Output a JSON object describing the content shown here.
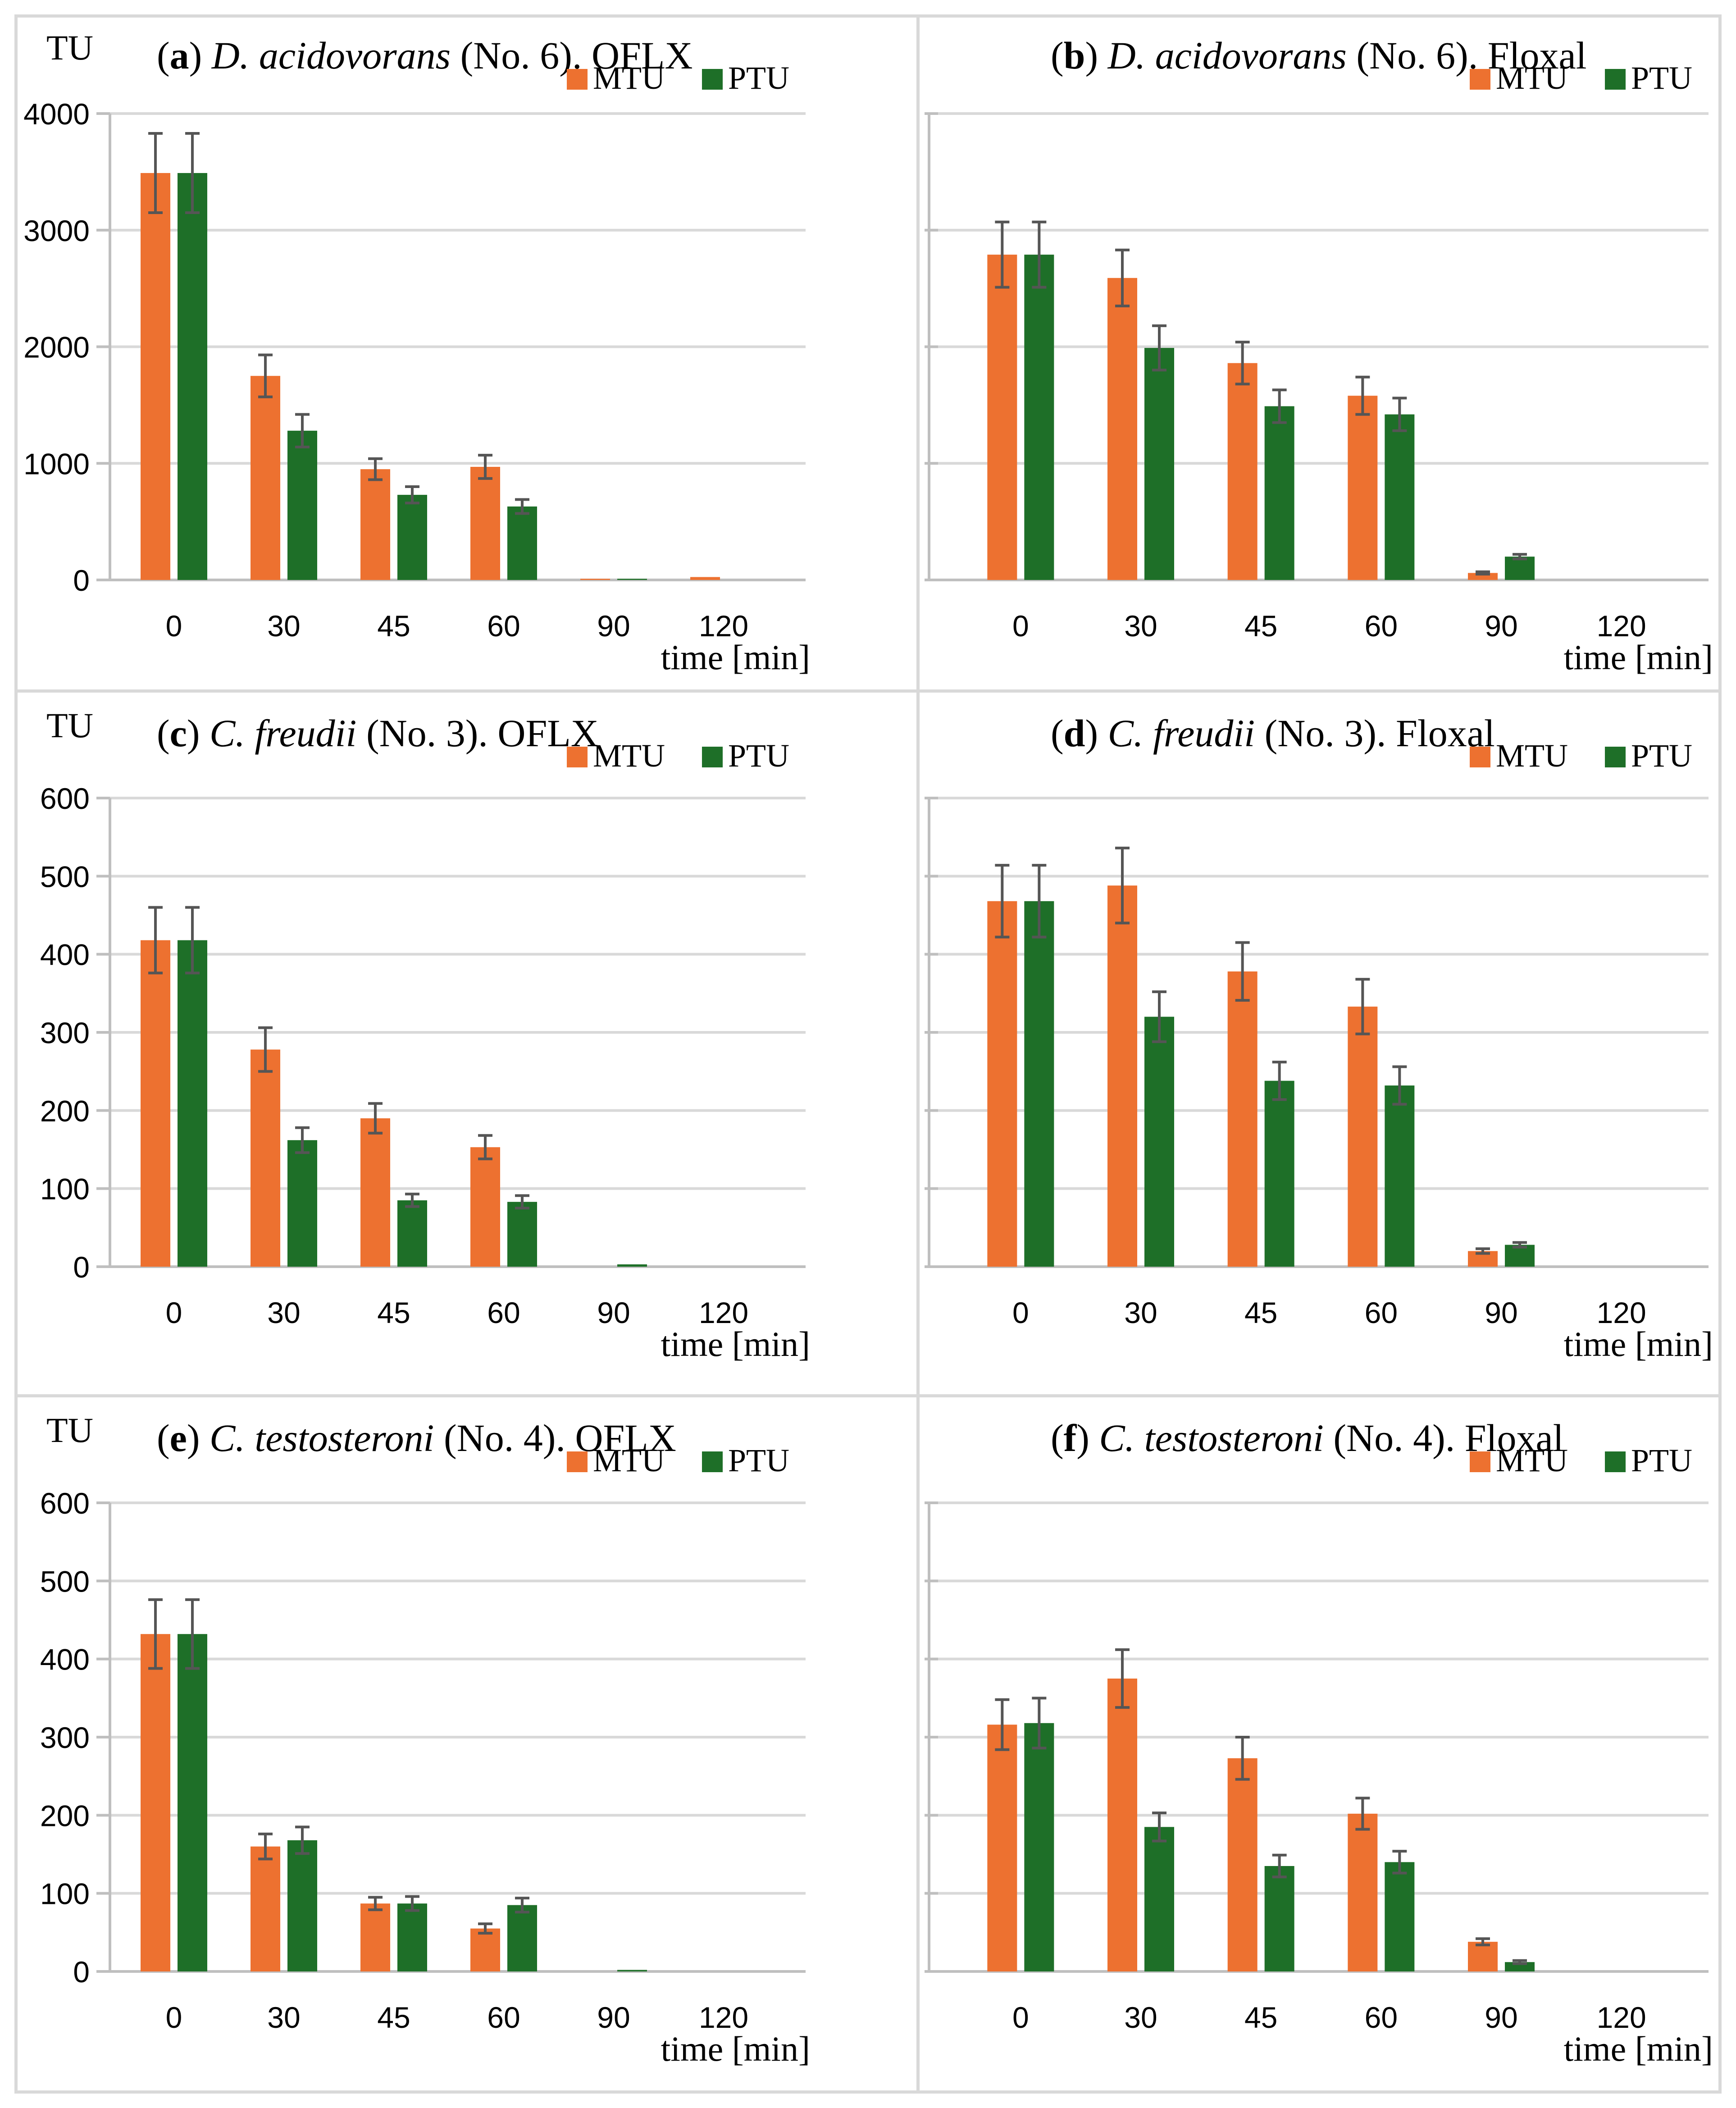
{
  "chart_data": [
    {
      "id": "a",
      "type": "bar",
      "title_letter": "a",
      "title_open": "(",
      "title_close": ")",
      "title_species": "D. acidovorans",
      "title_rest": "(No. 6). OFLX",
      "ylabel": "TU",
      "xlabel": "time [min]",
      "show_ylabel": true,
      "show_yticks": true,
      "categories": [
        "0",
        "30",
        "45",
        "60",
        "90",
        "120"
      ],
      "ylim": [
        0,
        4000
      ],
      "yticks": [
        0,
        1000,
        2000,
        3000,
        4000
      ],
      "grid": true,
      "legend_position": "top-right",
      "series": [
        {
          "name": "MTU",
          "color": "#ed7130",
          "values": [
            3490,
            1750,
            950,
            970,
            10,
            25
          ],
          "errors": [
            340,
            180,
            90,
            100,
            0,
            0
          ]
        },
        {
          "name": "PTU",
          "color": "#1e6f28",
          "values": [
            3490,
            1280,
            730,
            630,
            10,
            0
          ],
          "errors": [
            340,
            140,
            70,
            60,
            0,
            0
          ]
        }
      ]
    },
    {
      "id": "b",
      "type": "bar",
      "title_letter": "b",
      "title_open": "(",
      "title_close": ")",
      "title_species": "D. acidovorans",
      "title_rest": "(No. 6). Floxal",
      "ylabel": "",
      "xlabel": "time [min]",
      "show_ylabel": false,
      "show_yticks": false,
      "categories": [
        "0",
        "30",
        "45",
        "60",
        "90",
        "120"
      ],
      "ylim": [
        0,
        4000
      ],
      "yticks": [
        0,
        1000,
        2000,
        3000,
        4000
      ],
      "grid": true,
      "legend_position": "top-right",
      "series": [
        {
          "name": "MTU",
          "color": "#ed7130",
          "values": [
            2790,
            2590,
            1860,
            1580,
            60,
            0
          ],
          "errors": [
            280,
            240,
            180,
            160,
            10,
            0
          ]
        },
        {
          "name": "PTU",
          "color": "#1e6f28",
          "values": [
            2790,
            1990,
            1490,
            1420,
            200,
            0
          ],
          "errors": [
            280,
            190,
            140,
            140,
            20,
            0
          ]
        }
      ]
    },
    {
      "id": "c",
      "type": "bar",
      "title_letter": "c",
      "title_open": "(",
      "title_close": ")",
      "title_species": "C. freudii",
      "title_rest": "(No. 3). OFLX",
      "ylabel": "TU",
      "xlabel": "time [min]",
      "show_ylabel": true,
      "show_yticks": true,
      "categories": [
        "0",
        "30",
        "45",
        "60",
        "90",
        "120"
      ],
      "ylim": [
        0,
        600
      ],
      "yticks": [
        0,
        100,
        200,
        300,
        400,
        500,
        600
      ],
      "grid": true,
      "legend_position": "top-right",
      "series": [
        {
          "name": "MTU",
          "color": "#ed7130",
          "values": [
            418,
            278,
            190,
            153,
            0,
            0
          ],
          "errors": [
            42,
            28,
            19,
            15,
            0,
            0
          ]
        },
        {
          "name": "PTU",
          "color": "#1e6f28",
          "values": [
            418,
            162,
            85,
            83,
            3,
            0
          ],
          "errors": [
            42,
            16,
            8,
            8,
            0,
            0
          ]
        }
      ]
    },
    {
      "id": "d",
      "type": "bar",
      "title_letter": "d",
      "title_open": "(",
      "title_close": ")",
      "title_species": "C. freudii",
      "title_rest": "(No. 3). Floxal",
      "ylabel": "",
      "xlabel": "time [min]",
      "show_ylabel": false,
      "show_yticks": false,
      "categories": [
        "0",
        "30",
        "45",
        "60",
        "90",
        "120"
      ],
      "ylim": [
        0,
        600
      ],
      "yticks": [
        0,
        100,
        200,
        300,
        400,
        500,
        600
      ],
      "grid": true,
      "legend_position": "top-right",
      "series": [
        {
          "name": "MTU",
          "color": "#ed7130",
          "values": [
            468,
            488,
            378,
            333,
            20,
            0
          ],
          "errors": [
            46,
            48,
            37,
            35,
            3,
            0
          ]
        },
        {
          "name": "PTU",
          "color": "#1e6f28",
          "values": [
            468,
            320,
            238,
            232,
            28,
            0
          ],
          "errors": [
            46,
            32,
            24,
            24,
            3,
            0
          ]
        }
      ]
    },
    {
      "id": "e",
      "type": "bar",
      "title_letter": "e",
      "title_open": "(",
      "title_close": ")",
      "title_species": "C. testosteroni",
      "title_rest": "(No. 4). OFLX",
      "ylabel": "TU",
      "xlabel": "time [min]",
      "show_ylabel": true,
      "show_yticks": true,
      "categories": [
        "0",
        "30",
        "45",
        "60",
        "90",
        "120"
      ],
      "ylim": [
        0,
        600
      ],
      "yticks": [
        0,
        100,
        200,
        300,
        400,
        500,
        600
      ],
      "grid": true,
      "legend_position": "top-right",
      "series": [
        {
          "name": "MTU",
          "color": "#ed7130",
          "values": [
            432,
            160,
            87,
            55,
            0,
            0
          ],
          "errors": [
            44,
            16,
            8,
            6,
            0,
            0
          ]
        },
        {
          "name": "PTU",
          "color": "#1e6f28",
          "values": [
            432,
            168,
            87,
            85,
            2,
            0
          ],
          "errors": [
            44,
            17,
            9,
            9,
            0,
            0
          ]
        }
      ]
    },
    {
      "id": "f",
      "type": "bar",
      "title_letter": "f",
      "title_open": "(",
      "title_close": ")",
      "title_species": "C. testosteroni",
      "title_rest": "(No. 4). Floxal",
      "ylabel": "",
      "xlabel": "time [min]",
      "show_ylabel": false,
      "show_yticks": false,
      "categories": [
        "0",
        "30",
        "45",
        "60",
        "90",
        "120"
      ],
      "ylim": [
        0,
        600
      ],
      "yticks": [
        0,
        100,
        200,
        300,
        400,
        500,
        600
      ],
      "grid": true,
      "legend_position": "top-right",
      "series": [
        {
          "name": "MTU",
          "color": "#ed7130",
          "values": [
            316,
            375,
            273,
            202,
            38,
            0
          ],
          "errors": [
            32,
            37,
            27,
            20,
            4,
            0
          ]
        },
        {
          "name": "PTU",
          "color": "#1e6f28",
          "values": [
            318,
            185,
            135,
            140,
            12,
            0
          ],
          "errors": [
            32,
            18,
            14,
            14,
            2,
            0
          ]
        }
      ]
    }
  ]
}
